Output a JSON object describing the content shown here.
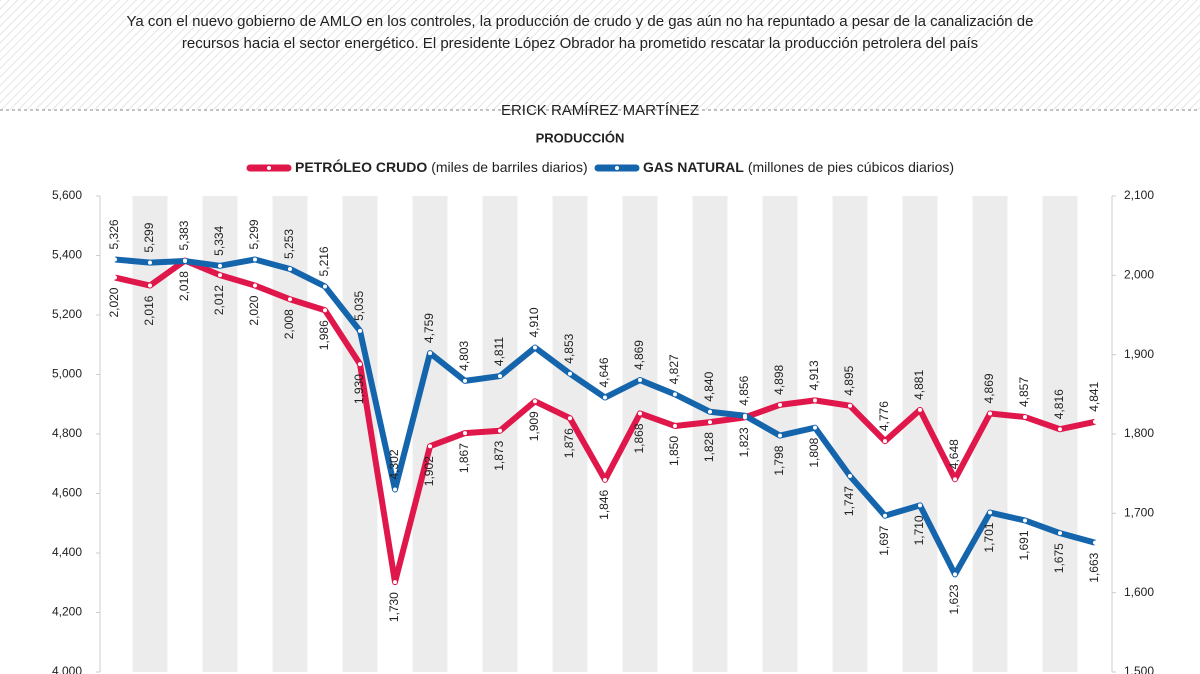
{
  "intro": [
    "Ya con el nuevo gobierno de AMLO en los controles, la producción de crudo y de gas aún no ha repuntado a pesar de la canalización de",
    "recursos hacia el sector energético. El presidente López Obrador ha prometido rescatar la producción petrolera del país"
  ],
  "author": "ERICK RAMÍREZ MARTÍNEZ",
  "chart_data": {
    "type": "line",
    "title": "PRODUCCIÓN",
    "series": [
      {
        "name": "PETRÓLEO CRUDO",
        "unit": "(miles de barriles diarios)",
        "color": "#e0174a",
        "axis": "y",
        "values": [
          5326,
          5299,
          5383,
          5334,
          5299,
          5253,
          5216,
          5035,
          4302,
          4759,
          4803,
          4811,
          4910,
          4853,
          4646,
          4869,
          4827,
          4840,
          4856,
          4898,
          4913,
          4895,
          4776,
          4881,
          4648,
          4869,
          4857,
          4816,
          4841
        ],
        "value_labels": [
          "5,326",
          "5,299",
          "5,383",
          "5,334",
          "5,299",
          "5,253",
          "5,216",
          "5,035",
          "4,302",
          "4,759",
          "4,803",
          "4,811",
          "4,910",
          "4,853",
          "4,646",
          "4,869",
          "4,827",
          "4,840",
          "4,856",
          "4,898",
          "4,913",
          "4,895",
          "4,776",
          "4,881",
          "4,648",
          "4,869",
          "4,857",
          "4,816",
          "4,841"
        ]
      },
      {
        "name": "GAS NATURAL",
        "unit": "(millones de pies cúbicos diarios)",
        "color": "#1565ad",
        "axis": "y2",
        "values": [
          2020,
          2016,
          2018,
          2012,
          2020,
          2008,
          1986,
          1930,
          1730,
          1902,
          1867,
          1873,
          1909,
          1876,
          1846,
          1868,
          1850,
          1828,
          1823,
          1798,
          1808,
          1747,
          1697,
          1710,
          1623,
          1701,
          1691,
          1675,
          1663
        ],
        "value_labels": [
          "2,020",
          "2,016",
          "2,018",
          "2,012",
          "2,020",
          "2,008",
          "1,986",
          "1,930",
          "1,730",
          "1,902",
          "1,867",
          "1,873",
          "1,909",
          "1,876",
          "1,846",
          "1,868",
          "1,850",
          "1,828",
          "1,823",
          "1,798",
          "1,808",
          "1,747",
          "1,697",
          "1,710",
          "1,623",
          "1,701",
          "1,691",
          "1,675",
          "1,663"
        ]
      }
    ],
    "ylim": [
      4000,
      5600
    ],
    "yticks": [
      {
        "value": 4000,
        "label": "4,000"
      },
      {
        "value": 4200,
        "label": "4,200"
      },
      {
        "value": 4400,
        "label": "4,400"
      },
      {
        "value": 4600,
        "label": "4,600"
      },
      {
        "value": 4800,
        "label": "4,800"
      },
      {
        "value": 5000,
        "label": "5,000"
      },
      {
        "value": 5200,
        "label": "5,200"
      },
      {
        "value": 5400,
        "label": "5,400"
      },
      {
        "value": 5600,
        "label": "5,600"
      }
    ],
    "y2lim": [
      1500,
      2100
    ],
    "y2ticks": [
      {
        "value": 1500,
        "label": "1,500"
      },
      {
        "value": 1600,
        "label": "1,600"
      },
      {
        "value": 1700,
        "label": "1,700"
      },
      {
        "value": 1800,
        "label": "1,800"
      },
      {
        "value": 1900,
        "label": "1,900"
      },
      {
        "value": 2000,
        "label": "2,000"
      },
      {
        "value": 2100,
        "label": "2,100"
      }
    ]
  }
}
